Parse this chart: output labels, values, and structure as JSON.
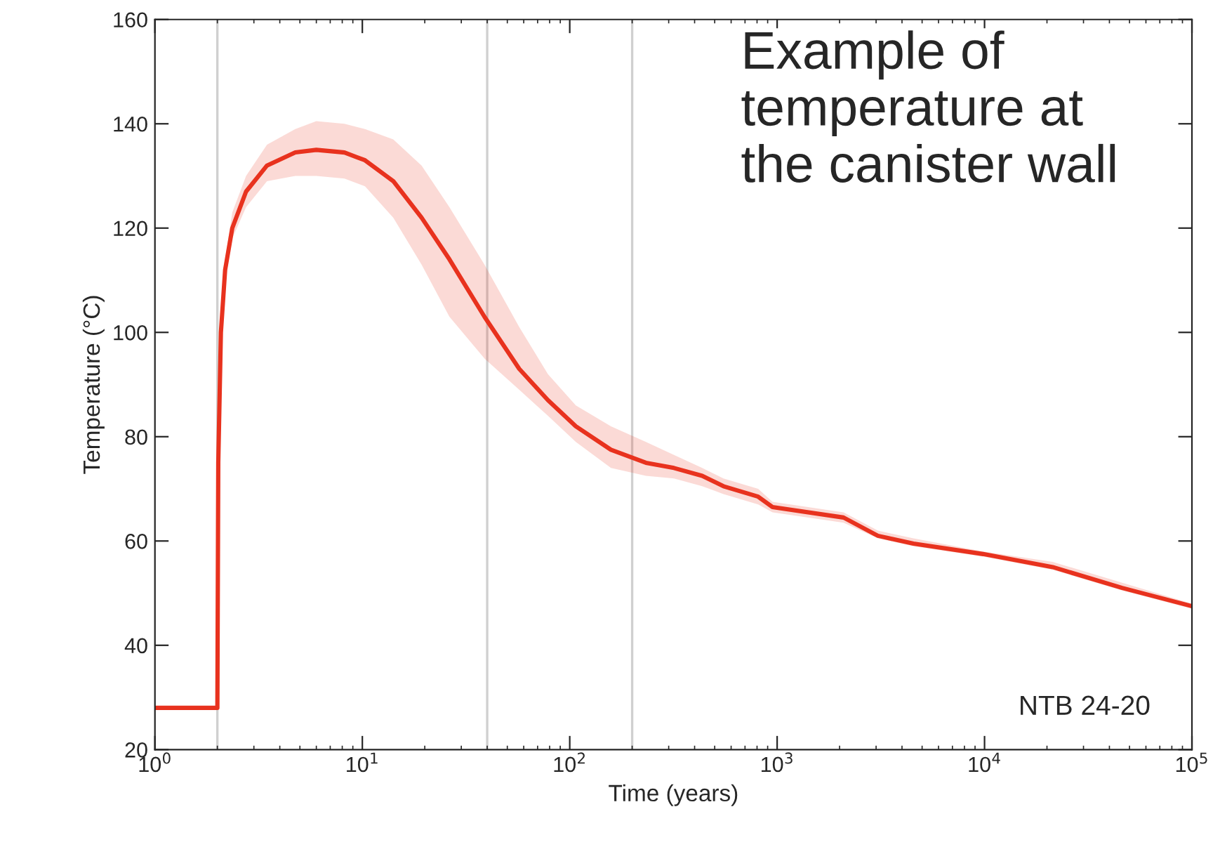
{
  "chart_data": {
    "type": "line",
    "xlabel": "Time (years)",
    "ylabel": "Temperature (°C)",
    "log": "x",
    "xlim": [
      1,
      100000
    ],
    "ylim": [
      20,
      160
    ],
    "xticks": [
      {
        "value": 1,
        "label": "10$^{0}$"
      },
      {
        "value": 10,
        "label": "10$^{1}$"
      },
      {
        "value": 100,
        "label": "10$^{2}$"
      },
      {
        "value": 1000,
        "label": "10$^{3}$"
      },
      {
        "value": 10000,
        "label": "10$^{4}$"
      },
      {
        "value": 100000,
        "label": "10$^{5}$"
      }
    ],
    "yticks": [
      20,
      40,
      60,
      80,
      100,
      120,
      140,
      160
    ],
    "grid": false,
    "legend": false,
    "ref_lines": [
      {
        "axis": "x",
        "value": 2,
        "color": "#d0d0d0"
      },
      {
        "axis": "x",
        "value": 40,
        "color": "#d0d0d0"
      },
      {
        "axis": "x",
        "value": 200,
        "color": "#d0d0d0"
      }
    ],
    "annotations": [
      "Example of\ntemperature at\nthe canister wall",
      "NTB 24-20"
    ],
    "series": [
      {
        "color": "#e8321e",
        "x": [
          1,
          2,
          2.02,
          2.08,
          2.18,
          2.36,
          2.75,
          3.47,
          4.75,
          6.0,
          8.2,
          10.3,
          14.1,
          19.3,
          26.3,
          38.8,
          57.1,
          78.5,
          107,
          158,
          233,
          318,
          435,
          551,
          810,
          950,
          2090,
          3060,
          4540,
          9840,
          21300,
          46100,
          100000
        ],
        "values": [
          28,
          28,
          75,
          100,
          112,
          120,
          127,
          132,
          134.5,
          135,
          134.5,
          133,
          129,
          122,
          114,
          103,
          93,
          87,
          82,
          77.5,
          75,
          74,
          72.5,
          70.5,
          68.5,
          66.5,
          64.5,
          61,
          59.5,
          57.5,
          55,
          51,
          47.5
        ],
        "lower": [
          28,
          28,
          75,
          96,
          110,
          118,
          124,
          129,
          130,
          130,
          129.5,
          128,
          122,
          113,
          103,
          95,
          89,
          84,
          79,
          74,
          72.5,
          72,
          70.5,
          69,
          67,
          65.5,
          63.5,
          60.5,
          59,
          57,
          54.5,
          50.5,
          47
        ],
        "upper": [
          28,
          28,
          75,
          100,
          114,
          123,
          130,
          136,
          139,
          140.5,
          140,
          139,
          137,
          132,
          124,
          113,
          101,
          92,
          86,
          82,
          79,
          76.5,
          74,
          72,
          70,
          67.5,
          65.5,
          62,
          60.5,
          58,
          56,
          52,
          48
        ]
      }
    ]
  }
}
